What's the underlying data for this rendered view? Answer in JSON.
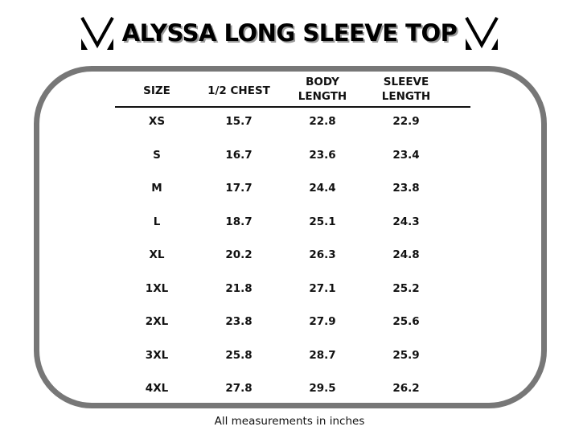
{
  "title": "ALYSSA LONG SLEEVE TOP",
  "logo_icon": "v-monogram-logo",
  "border_color": "#777777",
  "table": {
    "headers": [
      [
        "SIZE"
      ],
      [
        "1/2 CHEST"
      ],
      [
        "BODY",
        "LENGTH"
      ],
      [
        "SLEEVE",
        "LENGTH"
      ]
    ],
    "rows": [
      [
        "XS",
        "15.7",
        "22.8",
        "22.9"
      ],
      [
        "S",
        "16.7",
        "23.6",
        "23.4"
      ],
      [
        "M",
        "17.7",
        "24.4",
        "23.8"
      ],
      [
        "L",
        "18.7",
        "25.1",
        "24.3"
      ],
      [
        "XL",
        "20.2",
        "26.3",
        "24.8"
      ],
      [
        "1XL",
        "21.8",
        "27.1",
        "25.2"
      ],
      [
        "2XL",
        "23.8",
        "27.9",
        "25.6"
      ],
      [
        "3XL",
        "25.8",
        "28.7",
        "25.9"
      ],
      [
        "4XL",
        "27.8",
        "29.5",
        "26.2"
      ]
    ]
  },
  "footnote": "All measurements in inches"
}
